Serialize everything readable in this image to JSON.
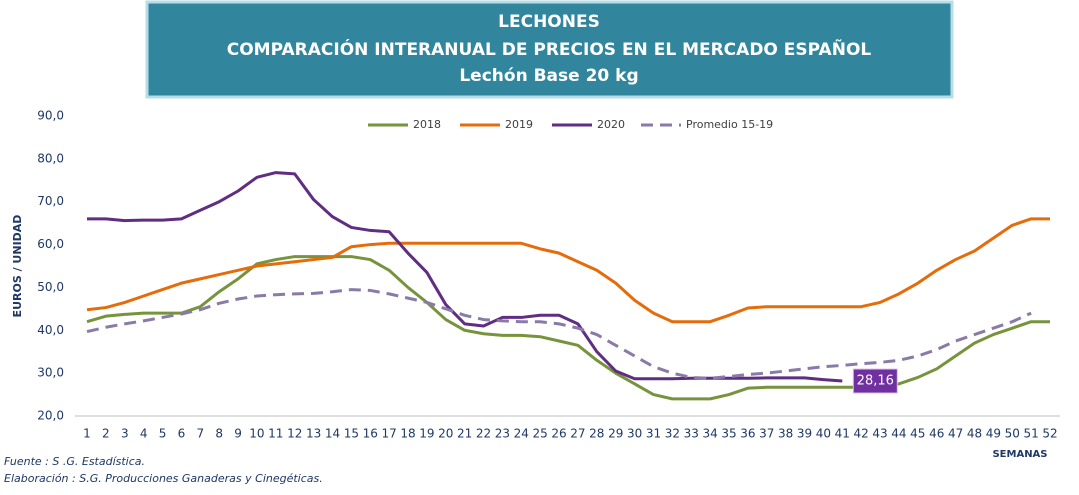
{
  "chart_data": {
    "type": "line",
    "title": "LECHONES",
    "subtitle": "COMPARACIÓN INTERANUAL DE PRECIOS EN EL MERCADO ESPAÑOL",
    "subtitle2": "Lechón Base 20 kg",
    "y_label": "EUROS / UNIDAD",
    "x_label": "SEMANAS",
    "source": "Fuente :  S .G. Estadística.",
    "elaboration": "Elaboración : S.G. Producciones Ganaderas y Cinegéticas.",
    "categories": [
      "1",
      "2",
      "3",
      "4",
      "5",
      "6",
      "7",
      "8",
      "9",
      "10",
      "11",
      "12",
      "13",
      "14",
      "15",
      "16",
      "17",
      "18",
      "19",
      "20",
      "21",
      "22",
      "23",
      "24",
      "25",
      "26",
      "27",
      "28",
      "29",
      "30",
      "31",
      "32",
      "33",
      "34",
      "35",
      "36",
      "37",
      "38",
      "39",
      "40",
      "41",
      "42",
      "43",
      "44",
      "45",
      "46",
      "47",
      "48",
      "49",
      "50",
      "51",
      "52"
    ],
    "ylim": [
      20,
      90
    ],
    "yticks": [
      {
        "value": 20,
        "label": "20,0"
      },
      {
        "value": 30,
        "label": "30,0"
      },
      {
        "value": 40,
        "label": "40,0"
      },
      {
        "value": 50,
        "label": "50,0"
      },
      {
        "value": 60,
        "label": "60,0"
      },
      {
        "value": 70,
        "label": "70,0"
      },
      {
        "value": 80,
        "label": "80,0"
      },
      {
        "value": 90,
        "label": "90,0"
      }
    ],
    "grid": false,
    "legend": "top",
    "series": [
      {
        "name": "2018",
        "color": "#77933c",
        "line_style": "solid",
        "values": [
          42,
          43.3,
          43.7,
          44,
          44,
          44,
          45.5,
          49,
          52,
          55.5,
          56.5,
          57.2,
          57.2,
          57.2,
          57.2,
          56.5,
          54,
          50,
          46.5,
          42.5,
          40,
          39.2,
          38.8,
          38.8,
          38.5,
          37.5,
          36.5,
          33,
          30,
          27.5,
          25,
          24,
          24,
          24,
          25,
          26.5,
          26.7,
          26.7,
          26.7,
          26.7,
          26.7,
          26.7,
          26.7,
          27.5,
          29,
          31,
          34,
          37,
          39,
          40.5,
          42,
          42
        ]
      },
      {
        "name": "2019",
        "color": "#e46c0a",
        "line_style": "solid",
        "values": [
          44.8,
          45.3,
          46.5,
          48,
          49.5,
          51,
          52,
          53,
          54,
          55,
          55.5,
          56,
          56.5,
          57,
          59.5,
          60,
          60.3,
          60.3,
          60.3,
          60.3,
          60.3,
          60.3,
          60.3,
          60.3,
          59,
          58,
          56,
          54,
          51,
          47,
          44,
          42,
          42,
          42,
          43.5,
          45.2,
          45.5,
          45.5,
          45.5,
          45.5,
          45.5,
          45.5,
          46.5,
          48.5,
          51,
          54,
          56.5,
          58.5,
          61.5,
          64.5,
          66,
          66
        ]
      },
      {
        "name": "2020",
        "color": "#5f2d82",
        "line_style": "solid",
        "values": [
          66,
          66,
          65.6,
          65.7,
          65.7,
          66,
          68,
          70,
          72.5,
          75.7,
          76.8,
          76.5,
          70.5,
          66.5,
          64,
          63.3,
          63,
          58,
          53.5,
          46,
          41.5,
          41,
          43,
          43,
          43.5,
          43.5,
          41.5,
          35,
          30.5,
          28.7,
          28.7,
          28.7,
          28.8,
          28.8,
          28.8,
          28.8,
          28.9,
          28.9,
          28.9,
          28.5,
          28.16,
          null,
          null,
          null,
          null,
          null,
          null,
          null,
          null,
          null,
          null,
          null
        ],
        "value_labels": [
          null,
          null,
          null,
          null,
          null,
          null,
          null,
          null,
          null,
          null,
          null,
          null,
          null,
          null,
          null,
          null,
          null,
          null,
          null,
          null,
          null,
          null,
          null,
          null,
          null,
          null,
          null,
          null,
          null,
          null,
          null,
          null,
          null,
          null,
          null,
          null,
          null,
          null,
          null,
          null,
          "28,16",
          null,
          null,
          null,
          null,
          null,
          null,
          null,
          null,
          null,
          null,
          null
        ]
      },
      {
        "name": "Promedio 15-19",
        "color": "#8a7aa8",
        "line_style": "dashed",
        "values": [
          39.7,
          40.7,
          41.5,
          42.2,
          43,
          43.8,
          44.8,
          46.3,
          47.3,
          48,
          48.3,
          48.5,
          48.6,
          49,
          49.5,
          49.3,
          48.5,
          47.5,
          46.5,
          45,
          43.5,
          42.5,
          42.2,
          42,
          42,
          41.5,
          40.5,
          39,
          36.5,
          34,
          31.5,
          30,
          29,
          28.8,
          29.2,
          29.7,
          30,
          30.5,
          31,
          31.5,
          31.8,
          32.2,
          32.5,
          33,
          34,
          35.5,
          37.5,
          39,
          40.5,
          42,
          44,
          null
        ]
      }
    ]
  }
}
